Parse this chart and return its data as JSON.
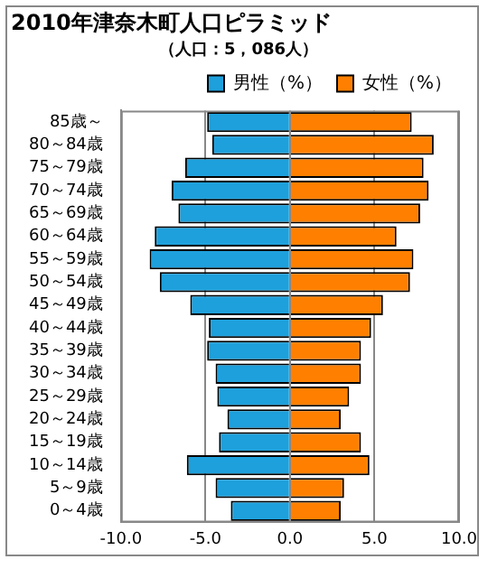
{
  "chart_data": {
    "type": "bar",
    "orientation": "horizontal",
    "stacked": true,
    "title": "2010年津奈木町人口ピラミッド",
    "subtitle": "（人口：5，086人）",
    "categories": [
      "85歳～",
      "80～84歳",
      "75～79歳",
      "70～74歳",
      "65～69歳",
      "60～64歳",
      "55～59歳",
      "50～54歳",
      "45～49歳",
      "40～44歳",
      "35～39歳",
      "30～34歳",
      "25～29歳",
      "20～24歳",
      "15～19歳",
      "10～14歳",
      "5～9歳",
      "0～4歳"
    ],
    "series": [
      {
        "name": "男性（%）",
        "color": "#1ea0dc",
        "values": [
          -4.9,
          -4.6,
          -6.2,
          -7.0,
          -6.6,
          -8.0,
          -8.3,
          -7.7,
          -5.9,
          -4.8,
          -4.9,
          -4.4,
          -4.3,
          -3.7,
          -4.2,
          -6.1,
          -4.4,
          -3.5
        ]
      },
      {
        "name": "女性（%）",
        "color": "#ff8000",
        "values": [
          7.2,
          8.5,
          7.9,
          8.2,
          7.7,
          6.3,
          7.3,
          7.1,
          5.5,
          4.8,
          4.2,
          4.2,
          3.5,
          3.0,
          4.2,
          4.7,
          3.2,
          3.0
        ]
      }
    ],
    "xlim": [
      -10,
      10
    ],
    "xticks": [
      {
        "value": -10,
        "label": "-10.0"
      },
      {
        "value": -5,
        "label": "-5.0"
      },
      {
        "value": 0,
        "label": "0.0"
      },
      {
        "value": 5,
        "label": "5.0"
      },
      {
        "value": 10,
        "label": "10.0"
      }
    ],
    "grid": "x",
    "legend": "top right"
  }
}
